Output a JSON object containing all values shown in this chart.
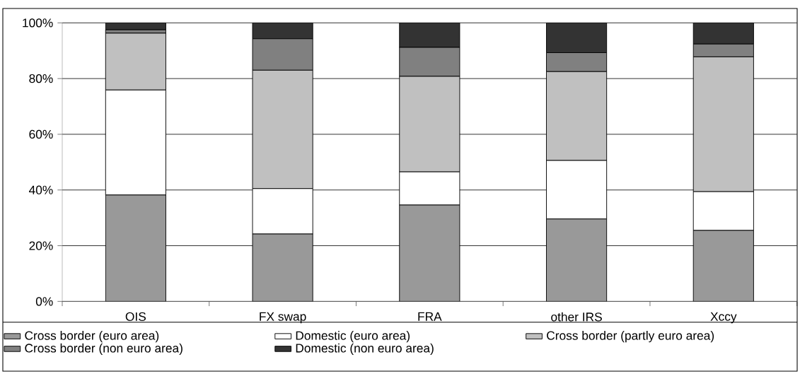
{
  "chart_data": {
    "type": "bar",
    "stacked": true,
    "categories": [
      "OIS",
      "FX swap",
      "FRA",
      "other IRS",
      "Xccy"
    ],
    "series": [
      {
        "name": "Cross border (euro area)",
        "color": "#999999",
        "values": [
          38.2,
          24.2,
          34.6,
          29.6,
          25.5
        ]
      },
      {
        "name": "Domestic (euro area)",
        "color": "#ffffff",
        "values": [
          37.7,
          16.3,
          11.9,
          21.0,
          13.9
        ]
      },
      {
        "name": "Cross border (partly euro area)",
        "color": "#c0c0c0",
        "values": [
          20.4,
          42.5,
          34.3,
          31.9,
          48.4
        ]
      },
      {
        "name": "Cross border (non euro area)",
        "color": "#808080",
        "values": [
          1.2,
          11.3,
          10.4,
          6.8,
          4.6
        ]
      },
      {
        "name": "Domestic (non euro area)",
        "color": "#333333",
        "values": [
          2.5,
          5.7,
          8.8,
          10.7,
          7.6
        ]
      }
    ],
    "ylim": [
      0,
      100
    ],
    "yticks": [
      {
        "value": 0,
        "label": "0%"
      },
      {
        "value": 20,
        "label": "20%"
      },
      {
        "value": 40,
        "label": "40%"
      },
      {
        "value": 60,
        "label": "60%"
      },
      {
        "value": 80,
        "label": "80%"
      },
      {
        "value": 100,
        "label": "100%"
      }
    ],
    "grid": "y",
    "legend": "bottom"
  }
}
